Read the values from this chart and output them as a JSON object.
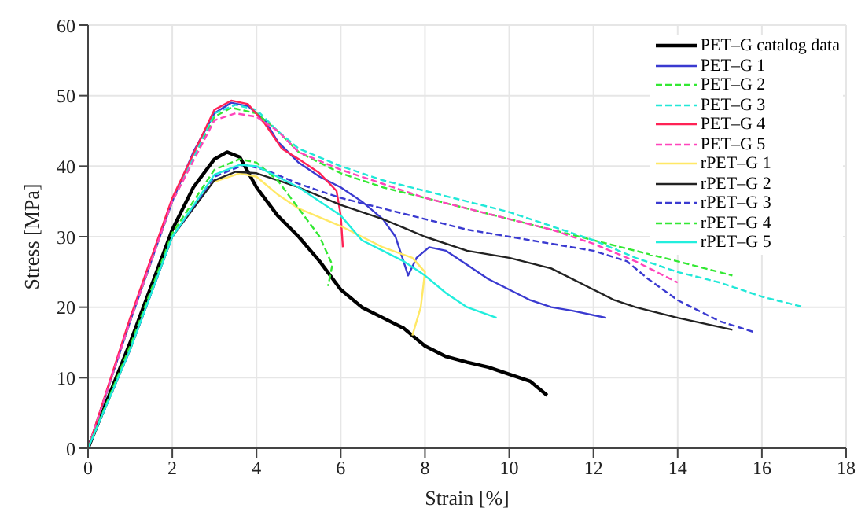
{
  "chart_data": {
    "type": "line",
    "xlabel": "Strain [%]",
    "ylabel": "Stress [MPa]",
    "xlim": [
      0,
      18
    ],
    "xticks": [
      0,
      2,
      4,
      6,
      8,
      10,
      12,
      14,
      16,
      18
    ],
    "ylim": [
      0,
      60
    ],
    "yticks": [
      0,
      10,
      20,
      30,
      40,
      50,
      60
    ],
    "grid": true,
    "legend": "top right",
    "marker": "none",
    "series": [
      {
        "name": "PET–G catalog data",
        "color": "#000000",
        "line_style": "solid",
        "x": [
          0,
          1,
          2,
          2.5,
          3,
          3.3,
          3.6,
          4,
          4.5,
          5,
          5.5,
          6,
          6.5,
          7,
          7.5,
          8,
          8.5,
          9,
          9.5,
          10,
          10.5,
          10.9
        ],
        "values": [
          0,
          15,
          31,
          37,
          41,
          42,
          41.3,
          37,
          33,
          30,
          26.5,
          22.5,
          20,
          18.5,
          17,
          14.5,
          13,
          12.2,
          11.5,
          10.5,
          9.5,
          7.5
        ]
      },
      {
        "name": "PET–G 1",
        "color": "#3a3ad0",
        "line_style": "solid",
        "x": [
          0,
          1,
          2,
          2.5,
          3,
          3.4,
          3.8,
          4.2,
          4.5,
          5,
          5.5,
          6,
          6.5,
          7,
          7.3,
          7.6,
          7.8,
          8.1,
          8.5,
          9,
          9.5,
          10,
          10.5,
          11,
          11.5,
          12.3
        ],
        "values": [
          0,
          18,
          35,
          42,
          47.5,
          49,
          48.5,
          46.5,
          43.5,
          40.5,
          38.5,
          37,
          35,
          32.5,
          30,
          24.5,
          27,
          28.5,
          28,
          26,
          24,
          22.5,
          21,
          20,
          19.5,
          18.5
        ]
      },
      {
        "name": "PET–G 2",
        "color": "#33e833",
        "line_style": "dashed",
        "x": [
          0,
          1,
          2,
          3,
          3.4,
          4,
          4.5,
          5,
          6,
          7,
          8,
          9,
          10,
          11,
          12,
          13,
          14,
          15.3
        ],
        "values": [
          0,
          18,
          35,
          47,
          48.3,
          47.5,
          45,
          42,
          39,
          37,
          35.5,
          34,
          32.5,
          31,
          29.5,
          28,
          26.5,
          24.5
        ]
      },
      {
        "name": "PET–G 3",
        "color": "#22e8d8",
        "line_style": "dashed",
        "x": [
          0,
          1,
          2,
          3,
          3.5,
          4,
          4.5,
          5,
          6,
          7,
          8,
          9,
          10,
          11,
          12,
          13,
          14,
          15,
          16,
          17
        ],
        "values": [
          0,
          18,
          35,
          47.5,
          48.7,
          48,
          45,
          42.5,
          40,
          38,
          36.5,
          35,
          33.5,
          31.5,
          29.5,
          27,
          25,
          23.5,
          21.5,
          20
        ]
      },
      {
        "name": "PET–G 4",
        "color": "#ff2255",
        "line_style": "solid",
        "x": [
          0,
          1,
          2,
          3,
          3.4,
          3.8,
          4.2,
          4.6,
          5,
          5.5,
          5.9,
          6,
          6.05
        ],
        "values": [
          0,
          18.5,
          35.5,
          48,
          49.3,
          48.8,
          46,
          42.5,
          41,
          39,
          36.5,
          33,
          28.5
        ]
      },
      {
        "name": "PET–G 5",
        "color": "#ff44bb",
        "line_style": "dashed",
        "x": [
          0,
          1,
          2,
          3,
          3.5,
          4,
          4.5,
          5,
          6,
          7,
          8,
          9,
          10,
          11,
          12,
          13,
          13.5,
          14
        ],
        "values": [
          0,
          18,
          35,
          46.5,
          47.5,
          47,
          45,
          42,
          39.5,
          37.5,
          35.5,
          34,
          32.5,
          31,
          29,
          26.5,
          25,
          23.5
        ]
      },
      {
        "name": "rPET–G 1",
        "color": "#ffe866",
        "line_style": "solid",
        "x": [
          3,
          3.6,
          4,
          4.5,
          5,
          6,
          7,
          7.7,
          8,
          7.9,
          7.7
        ],
        "values": [
          37.8,
          39,
          38.5,
          36,
          34,
          31.5,
          28.5,
          27,
          25,
          20,
          16
        ]
      },
      {
        "name": "rPET–G 2",
        "color": "#222222",
        "line_style": "solid",
        "x": [
          0,
          1,
          2,
          3,
          3.5,
          4,
          5,
          6,
          7,
          8,
          9,
          10,
          11,
          12,
          12.5,
          13,
          14,
          15.3
        ],
        "values": [
          0,
          14,
          30,
          38,
          39.2,
          39,
          37,
          34.5,
          32.5,
          30,
          28,
          27,
          25.5,
          22.5,
          21,
          20,
          18.5,
          16.8
        ]
      },
      {
        "name": "rPET–G 3",
        "color": "#3a3ad0",
        "line_style": "dashed",
        "x": [
          0,
          1,
          2,
          3,
          3.7,
          4.2,
          5,
          6,
          7,
          8,
          9,
          10,
          11,
          12,
          12.8,
          13.3,
          14,
          15,
          15.8
        ],
        "values": [
          0,
          14,
          30,
          38.5,
          40.2,
          39.5,
          37.5,
          35.5,
          34,
          32.5,
          31,
          30,
          29,
          28,
          26.5,
          24,
          21,
          18,
          16.5
        ]
      },
      {
        "name": "rPET–G 4",
        "color": "#33e833",
        "line_style": "dashed",
        "x": [
          0,
          1,
          2,
          3,
          3.6,
          4,
          4.5,
          5,
          5.5,
          5.8,
          5.7
        ],
        "values": [
          0,
          14.5,
          30.5,
          39.5,
          41,
          40.5,
          38,
          34,
          30,
          26,
          23
        ]
      },
      {
        "name": "rPET–G 5",
        "color": "#22eedd",
        "line_style": "solid",
        "x": [
          0,
          1,
          2,
          3,
          3.6,
          4,
          5,
          6,
          6.5,
          7,
          7.5,
          8,
          8.5,
          9,
          9.7
        ],
        "values": [
          0,
          14,
          30,
          38.8,
          40.2,
          40,
          37,
          33,
          29.5,
          28,
          26.5,
          24.5,
          22,
          20,
          18.5
        ]
      }
    ]
  }
}
